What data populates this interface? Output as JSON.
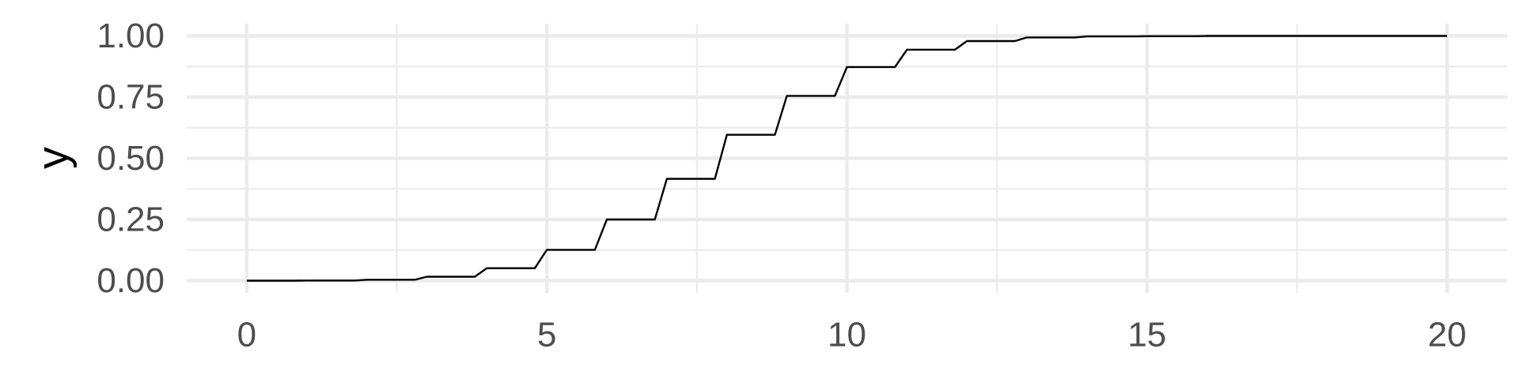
{
  "chart_data": {
    "type": "line",
    "title": "",
    "xlabel": "",
    "ylabel": "y",
    "xlim": [
      -1,
      21
    ],
    "ylim": [
      -0.05,
      1.05
    ],
    "x_ticks": [
      0,
      5,
      10,
      15,
      20
    ],
    "x_tick_labels": [
      "0",
      "5",
      "10",
      "15",
      "20"
    ],
    "y_ticks": [
      0,
      0.25,
      0.5,
      0.75,
      1
    ],
    "y_tick_labels": [
      "0.00",
      "0.25",
      "0.50",
      "0.75",
      "1.00"
    ],
    "grid": true,
    "series": [
      {
        "x": [
          0,
          1,
          2,
          3,
          4,
          5,
          6,
          7,
          8,
          9,
          10,
          11,
          12,
          13,
          14,
          15,
          16,
          17,
          18,
          19,
          20
        ],
        "y": [
          0.0,
          0.0005,
          0.004,
          0.016,
          0.051,
          0.126,
          0.25,
          0.416,
          0.596,
          0.755,
          0.873,
          0.944,
          0.979,
          0.994,
          0.998,
          0.999,
          1.0,
          1.0,
          1.0,
          1.0,
          1.0
        ]
      }
    ],
    "colors": {
      "line": "#000000",
      "grid": "#ebebeb",
      "tick_text": "#4d4d4d"
    }
  }
}
